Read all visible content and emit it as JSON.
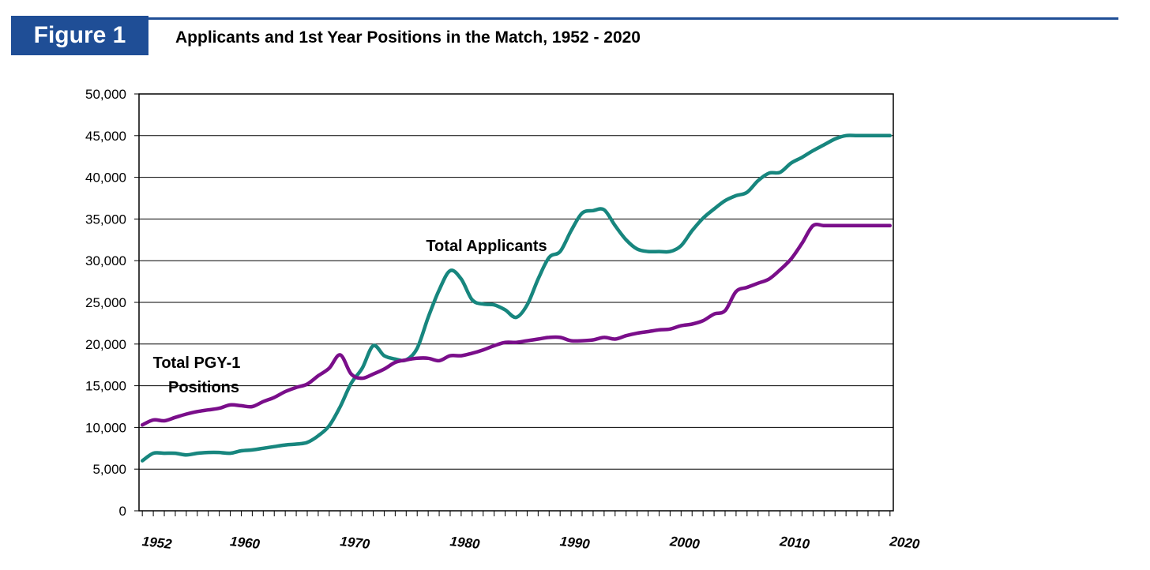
{
  "figure_label": "Figure 1",
  "figure_title": "Applicants and 1st Year Positions in the Match, 1952 - 2020",
  "colors": {
    "brand": "#1f4e96",
    "applicants": "#17867e",
    "positions": "#7a0e8a"
  },
  "chart_data": {
    "type": "line",
    "title": "Applicants and 1st Year Positions in the Match, 1952 - 2020",
    "xlabel": "",
    "ylabel": "",
    "xlim": [
      1952,
      2020
    ],
    "ylim": [
      0,
      50000
    ],
    "y_ticks": [
      0,
      5000,
      10000,
      15000,
      20000,
      25000,
      30000,
      35000,
      40000,
      45000,
      50000
    ],
    "y_tick_labels": [
      "0",
      "5,000",
      "10,000",
      "15,000",
      "20,000",
      "25,000",
      "30,000",
      "35,000",
      "40,000",
      "45,000",
      "50,000"
    ],
    "x_tick_labels": [
      {
        "year": 1952,
        "label": "1952"
      },
      {
        "year": 1960,
        "label": "1960"
      },
      {
        "year": 1970,
        "label": "1970"
      },
      {
        "year": 1980,
        "label": "1980"
      },
      {
        "year": 1990,
        "label": "1990"
      },
      {
        "year": 2000,
        "label": "2000"
      },
      {
        "year": 2010,
        "label": "2010"
      },
      {
        "year": 2020,
        "label": "2020"
      }
    ],
    "grid": true,
    "series": [
      {
        "name": "Total Applicants",
        "annotation_lines": [
          "Total Applicants"
        ],
        "color": "#17867e",
        "x": [
          1952,
          1953,
          1954,
          1955,
          1956,
          1957,
          1958,
          1959,
          1960,
          1961,
          1962,
          1963,
          1964,
          1965,
          1966,
          1967,
          1968,
          1969,
          1970,
          1971,
          1972,
          1973,
          1974,
          1975,
          1976,
          1977,
          1978,
          1979,
          1980,
          1981,
          1982,
          1983,
          1984,
          1985,
          1986,
          1987,
          1988,
          1989,
          1990,
          1991,
          1992,
          1993,
          1994,
          1995,
          1996,
          1997,
          1998,
          1999,
          2000,
          2001,
          2002,
          2003,
          2004,
          2005,
          2006,
          2007,
          2008,
          2009,
          2010,
          2011,
          2012,
          2013,
          2014,
          2015,
          2016,
          2017,
          2018,
          2019,
          2020
        ],
        "values": [
          6000,
          6900,
          6900,
          6900,
          6700,
          6900,
          7000,
          7000,
          6900,
          7200,
          7300,
          7500,
          7700,
          7900,
          8000,
          8200,
          9000,
          10200,
          12500,
          15300,
          17100,
          19800,
          18600,
          18200,
          18100,
          19500,
          23200,
          26500,
          28800,
          27800,
          25300,
          24800,
          24700,
          24100,
          23200,
          24700,
          27800,
          30400,
          31100,
          33600,
          35700,
          36000,
          36100,
          34200,
          32500,
          31400,
          31100,
          31100,
          31100,
          31800,
          33600,
          35100,
          36200,
          37200,
          37800,
          38200,
          39600,
          40500,
          40600,
          41700,
          42400,
          43200,
          43900,
          44600,
          45000,
          45000,
          45000,
          45000,
          45000
        ]
      },
      {
        "name": "Total PGY-1 Positions",
        "annotation_lines": [
          "Total PGY-1",
          "Positions"
        ],
        "color": "#7a0e8a",
        "x": [
          1952,
          1953,
          1954,
          1955,
          1956,
          1957,
          1958,
          1959,
          1960,
          1961,
          1962,
          1963,
          1964,
          1965,
          1966,
          1967,
          1968,
          1969,
          1970,
          1971,
          1972,
          1973,
          1974,
          1975,
          1976,
          1977,
          1978,
          1979,
          1980,
          1981,
          1982,
          1983,
          1984,
          1985,
          1986,
          1987,
          1988,
          1989,
          1990,
          1991,
          1992,
          1993,
          1994,
          1995,
          1996,
          1997,
          1998,
          1999,
          2000,
          2001,
          2002,
          2003,
          2004,
          2005,
          2006,
          2007,
          2008,
          2009,
          2010,
          2011,
          2012,
          2013,
          2014,
          2015,
          2016,
          2017,
          2018,
          2019,
          2020
        ],
        "values": [
          10300,
          10900,
          10800,
          11200,
          11600,
          11900,
          12100,
          12300,
          12700,
          12600,
          12500,
          13100,
          13600,
          14300,
          14800,
          15200,
          16200,
          17100,
          18700,
          16400,
          15900,
          16400,
          17000,
          17800,
          18100,
          18300,
          18300,
          18000,
          18600,
          18600,
          18900,
          19300,
          19800,
          20200,
          20200,
          20400,
          20600,
          20800,
          20800,
          20400,
          20400,
          20500,
          20800,
          20600,
          21000,
          21300,
          21500,
          21700,
          21800,
          22200,
          22400,
          22800,
          23600,
          24000,
          26300,
          26800,
          27300,
          27800,
          28900,
          30200,
          32100,
          34200,
          34200,
          34200,
          34200,
          34200,
          34200,
          34200,
          34200
        ]
      }
    ]
  }
}
